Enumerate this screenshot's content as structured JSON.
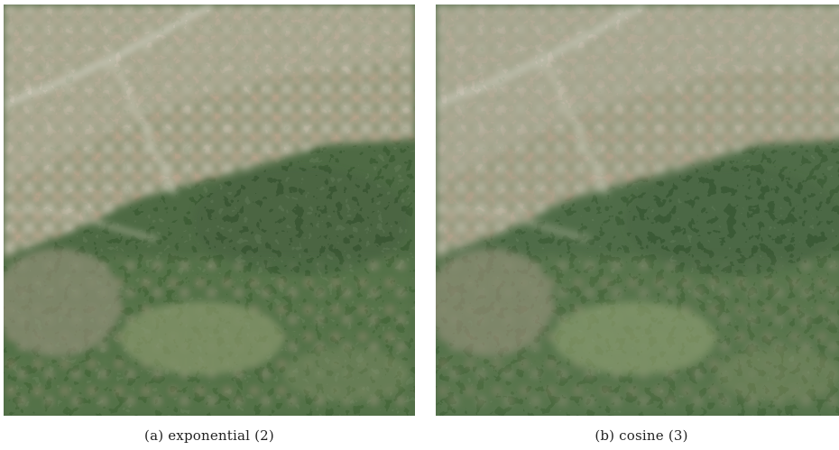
{
  "figure": {
    "panels": [
      {
        "caption": "(a)  exponential (2)",
        "colors": {
          "urban": "#b9b2a0",
          "forest": "#3f5e36",
          "field": "#7f9064"
        }
      },
      {
        "caption": "(b)  cosine (3)",
        "colors": {
          "urban": "#b8b1a0",
          "forest": "#41603a",
          "field": "#829366"
        }
      }
    ]
  }
}
